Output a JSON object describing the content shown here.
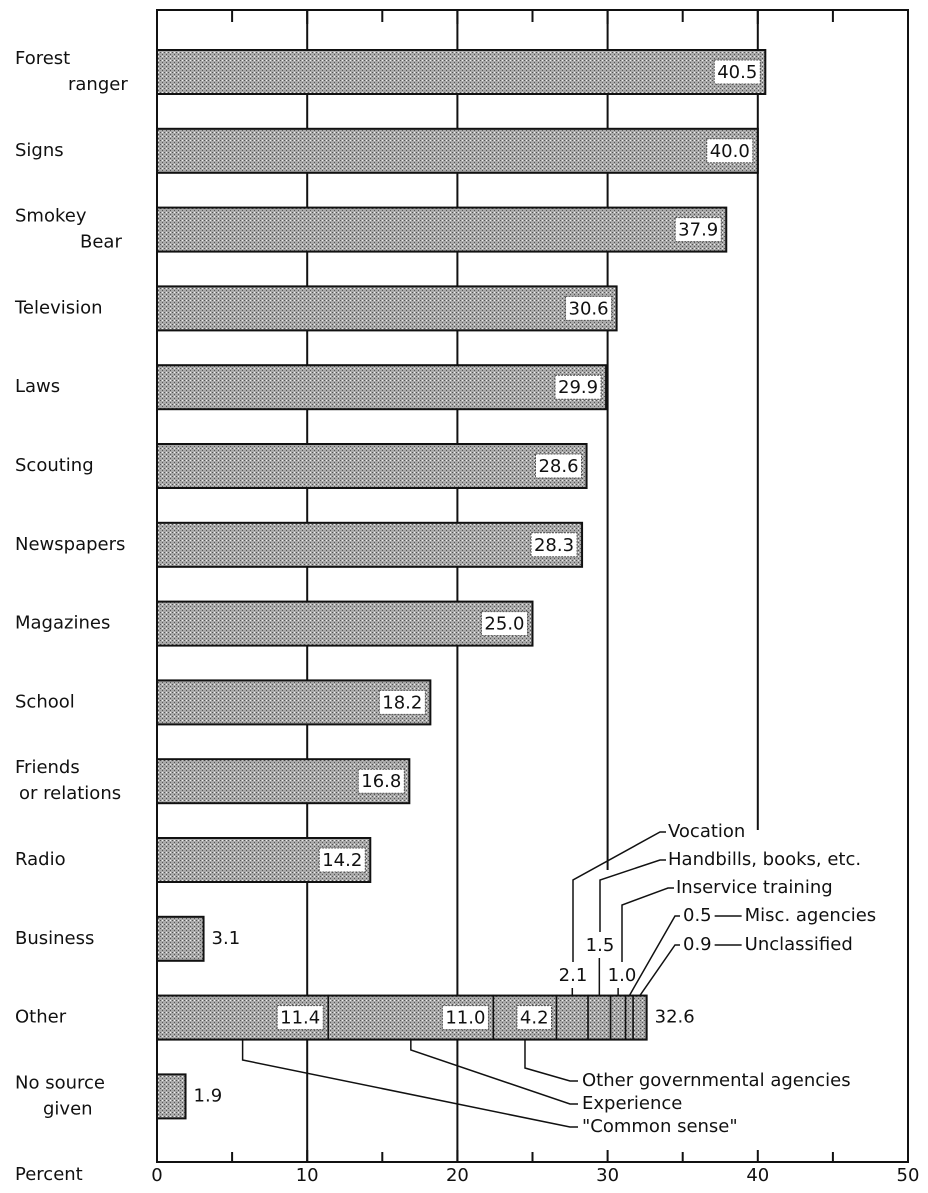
{
  "chart_data": {
    "type": "bar",
    "orientation": "horizontal",
    "categories": [
      [
        "Forest",
        "ranger"
      ],
      [
        "Signs"
      ],
      [
        "Smokey",
        "Bear"
      ],
      [
        "Television"
      ],
      [
        "Laws"
      ],
      [
        "Scouting"
      ],
      [
        "Newspapers"
      ],
      [
        "Magazines"
      ],
      [
        "School"
      ],
      [
        "Friends",
        "or relations"
      ],
      [
        "Radio"
      ],
      [
        "Business"
      ],
      [
        "Other"
      ],
      [
        "No source",
        "given"
      ]
    ],
    "values": [
      40.5,
      40.0,
      37.9,
      30.6,
      29.9,
      28.6,
      28.3,
      25.0,
      18.2,
      16.8,
      14.2,
      3.1,
      32.6,
      1.9
    ],
    "value_labels": [
      "40.5",
      "40.0",
      "37.9",
      "30.6",
      "29.9",
      "28.6",
      "28.3",
      "25.0",
      "18.2",
      "16.8",
      "14.2",
      "3.1",
      "32.6",
      "1.9"
    ],
    "color": "#a9a9a9",
    "other_breakdown": {
      "names": [
        "\"Common sense\"",
        "Experience",
        "Other governmental agencies",
        "Vocation",
        "Handbills, books, etc.",
        "Inservice training",
        "Misc. agencies",
        "Unclassified"
      ],
      "values": [
        11.4,
        11.0,
        4.2,
        2.1,
        1.5,
        1.0,
        0.5,
        0.9
      ],
      "value_labels": [
        "11.4",
        "11.0",
        "4.2",
        "2.1",
        "1.5",
        "1.0",
        "0.5",
        "0.9"
      ]
    },
    "xlabel": "Percent",
    "xlim": [
      0,
      50
    ],
    "xticks": [
      0,
      10,
      20,
      30,
      40,
      50
    ],
    "grid": true
  }
}
